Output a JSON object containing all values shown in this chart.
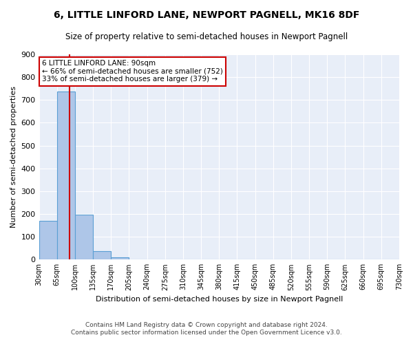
{
  "title": "6, LITTLE LINFORD LANE, NEWPORT PAGNELL, MK16 8DF",
  "subtitle": "Size of property relative to semi-detached houses in Newport Pagnell",
  "xlabel": "Distribution of semi-detached houses by size in Newport Pagnell",
  "ylabel": "Number of semi-detached properties",
  "footnote1": "Contains HM Land Registry data © Crown copyright and database right 2024.",
  "footnote2": "Contains public sector information licensed under the Open Government Licence v3.0.",
  "bin_labels": [
    "30sqm",
    "65sqm",
    "100sqm",
    "135sqm",
    "170sqm",
    "205sqm",
    "240sqm",
    "275sqm",
    "310sqm",
    "345sqm",
    "380sqm",
    "415sqm",
    "450sqm",
    "485sqm",
    "520sqm",
    "555sqm",
    "590sqm",
    "625sqm",
    "660sqm",
    "695sqm",
    "730sqm"
  ],
  "bar_values": [
    170,
    738,
    196,
    37,
    10,
    0,
    0,
    0,
    0,
    0,
    0,
    0,
    0,
    0,
    0,
    0,
    0,
    0,
    0,
    0
  ],
  "bar_color": "#aec6e8",
  "bar_edge_color": "#5a9fd4",
  "background_color": "#e8eef8",
  "grid_color": "#ffffff",
  "property_line_x": 90,
  "property_sqm": 90,
  "pct_smaller": 66,
  "count_smaller": 752,
  "pct_larger": 33,
  "count_larger": 379,
  "annotation_box_color": "#cc0000",
  "ylim": [
    0,
    900
  ],
  "yticks": [
    0,
    100,
    200,
    300,
    400,
    500,
    600,
    700,
    800,
    900
  ],
  "bin_edges": [
    30,
    65,
    100,
    135,
    170,
    205,
    240,
    275,
    310,
    345,
    380,
    415,
    450,
    485,
    520,
    555,
    590,
    625,
    660,
    695,
    730
  ]
}
